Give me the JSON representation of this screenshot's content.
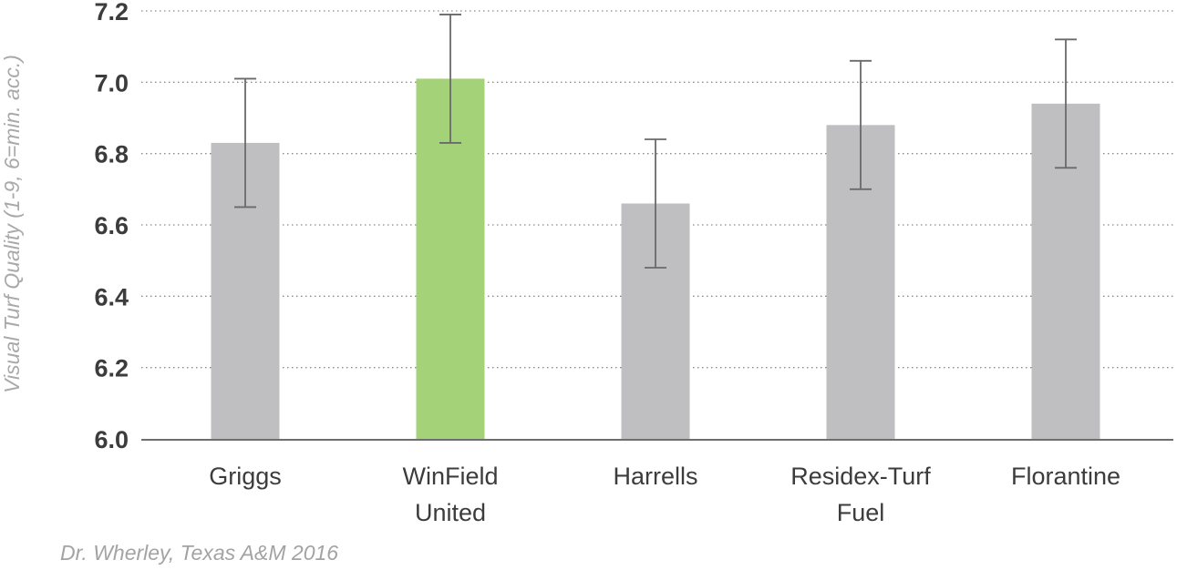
{
  "chart_data": {
    "type": "bar",
    "categories": [
      [
        "Griggs"
      ],
      [
        "WinField",
        "United"
      ],
      [
        "Harrells"
      ],
      [
        "Residex-Turf",
        "Fuel"
      ],
      [
        "Florantine"
      ]
    ],
    "values": [
      6.83,
      7.01,
      6.66,
      6.88,
      6.94
    ],
    "error_low": [
      6.65,
      6.83,
      6.48,
      6.7,
      6.76
    ],
    "error_high": [
      7.01,
      7.19,
      6.84,
      7.06,
      7.12
    ],
    "bar_colors": [
      "#bfbfc1",
      "#a3d279",
      "#bfbfc1",
      "#bfbfc1",
      "#bfbfc1"
    ],
    "ylabel": "Visual Turf Quality (1-9, 6=min. acc.)",
    "ylim": [
      6.0,
      7.2
    ],
    "yticks": [
      "6.0",
      "6.2",
      "6.4",
      "6.6",
      "6.8",
      "7.0",
      "7.2"
    ],
    "grid": true,
    "grid_style": "dotted"
  },
  "source": "Dr. Wherley, Texas A&M 2016"
}
